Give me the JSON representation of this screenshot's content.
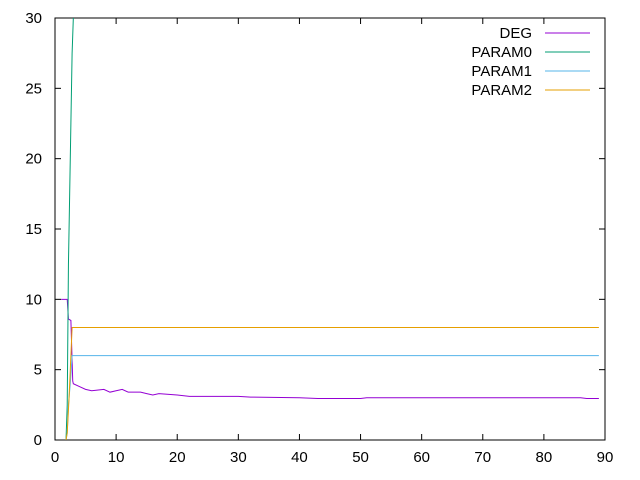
{
  "chart_data": {
    "type": "line",
    "title": "",
    "xlabel": "",
    "ylabel": "",
    "xlim": [
      0,
      90
    ],
    "ylim": [
      0,
      30
    ],
    "xticks": [
      0,
      10,
      20,
      30,
      40,
      50,
      60,
      70,
      80,
      90
    ],
    "yticks": [
      0,
      5,
      10,
      15,
      20,
      25,
      30
    ],
    "grid": false,
    "legend_position": "top-right",
    "series": [
      {
        "name": "DEG",
        "color": "#9400d3",
        "points": [
          [
            1,
            10
          ],
          [
            2,
            10
          ],
          [
            2.2,
            8.6
          ],
          [
            2.6,
            8.5
          ],
          [
            2.9,
            4.2
          ],
          [
            3,
            4
          ],
          [
            4,
            3.8
          ],
          [
            5,
            3.6
          ],
          [
            6,
            3.5
          ],
          [
            8,
            3.6
          ],
          [
            9,
            3.4
          ],
          [
            10,
            3.5
          ],
          [
            11,
            3.6
          ],
          [
            12,
            3.4
          ],
          [
            14,
            3.4
          ],
          [
            15,
            3.3
          ],
          [
            16,
            3.2
          ],
          [
            17,
            3.3
          ],
          [
            20,
            3.2
          ],
          [
            22,
            3.1
          ],
          [
            30,
            3.1
          ],
          [
            32,
            3.05
          ],
          [
            40,
            3.0
          ],
          [
            43,
            2.95
          ],
          [
            50,
            2.95
          ],
          [
            51,
            3.0
          ],
          [
            86,
            3.0
          ],
          [
            87,
            2.95
          ],
          [
            89,
            2.95
          ]
        ]
      },
      {
        "name": "PARAM0",
        "color": "#009e73",
        "points": [
          [
            1.8,
            0
          ],
          [
            2.0,
            2.5
          ],
          [
            2.2,
            12.5
          ],
          [
            2.4,
            17.5
          ],
          [
            2.6,
            22.5
          ],
          [
            2.8,
            27.5
          ],
          [
            3.0,
            30.0
          ]
        ]
      },
      {
        "name": "PARAM1",
        "color": "#56b4e9",
        "points": [
          [
            1.8,
            0
          ],
          [
            2.0,
            0.5
          ],
          [
            2.2,
            2.5
          ],
          [
            2.5,
            4.0
          ],
          [
            2.8,
            6.0
          ],
          [
            3,
            6.0
          ],
          [
            89,
            6.0
          ]
        ]
      },
      {
        "name": "PARAM2",
        "color": "#e69f00",
        "points": [
          [
            1.8,
            0
          ],
          [
            2.0,
            0.5
          ],
          [
            2.3,
            3.0
          ],
          [
            2.6,
            6.0
          ],
          [
            2.8,
            8.0
          ],
          [
            3,
            8.0
          ],
          [
            89,
            8.0
          ]
        ]
      }
    ]
  }
}
